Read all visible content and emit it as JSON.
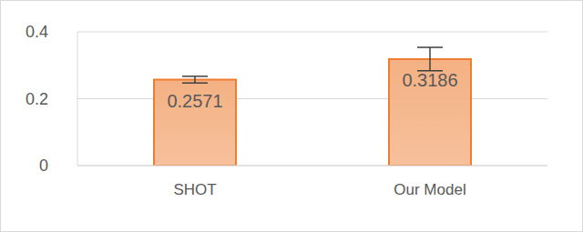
{
  "chart_data": {
    "type": "bar",
    "categories": [
      "SHOT",
      "Our Model"
    ],
    "values": [
      0.2571,
      0.3186
    ],
    "errors": [
      0.01,
      0.035
    ],
    "color": "#f4b183",
    "ylim": [
      0,
      0.4
    ],
    "yticks": [
      0,
      0.2,
      0.4
    ],
    "grid": true,
    "data_labels": true
  }
}
